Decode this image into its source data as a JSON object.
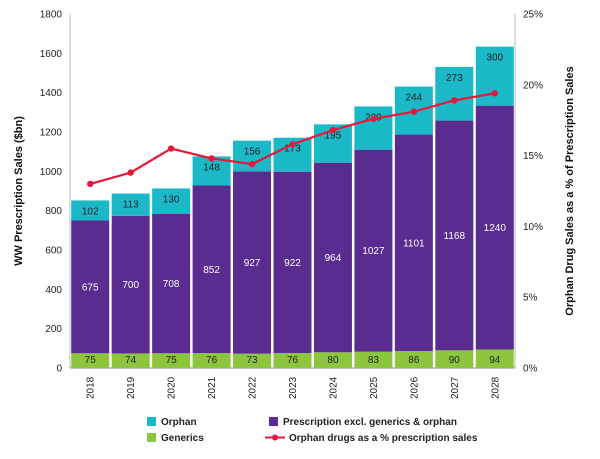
{
  "chart_data": {
    "type": "bar",
    "stacked": true,
    "categories": [
      "2018",
      "2019",
      "2020",
      "2021",
      "2022",
      "2023",
      "2024",
      "2025",
      "2026",
      "2027",
      "2028"
    ],
    "series": [
      {
        "name": "Generics",
        "color": "#8cc63f",
        "values": [
          75,
          74,
          75,
          76,
          73,
          76,
          80,
          83,
          86,
          90,
          94
        ]
      },
      {
        "name": "Prescription excl. generics & orphan",
        "color": "#5b2c8f",
        "values": [
          675,
          700,
          708,
          852,
          927,
          922,
          964,
          1027,
          1101,
          1168,
          1240
        ]
      },
      {
        "name": "Orphan",
        "color": "#1bb8c8",
        "values": [
          102,
          113,
          130,
          148,
          156,
          173,
          195,
          220,
          244,
          273,
          300
        ]
      }
    ],
    "line_series": {
      "name": "Orphan drugs as a % prescription sales",
      "color": "#e8173a",
      "axis": "right",
      "values": [
        13.0,
        13.8,
        15.5,
        14.8,
        14.4,
        15.8,
        16.8,
        17.6,
        18.1,
        18.9,
        19.4
      ]
    },
    "ylabel": "WW Prescription Sales ($bn)",
    "ylim": [
      0,
      1800
    ],
    "yticks": [
      "0",
      "200",
      "400",
      "600",
      "800",
      "1000",
      "1200",
      "1400",
      "1600",
      "1800"
    ],
    "y2label": "Orphan Drug Sales as a % of Prescription Sales",
    "y2lim": [
      0,
      25
    ],
    "y2ticks": [
      "0%",
      "5%",
      "10%",
      "15%",
      "20%",
      "25%"
    ],
    "legend": [
      {
        "label": "Orphan",
        "kind": "box",
        "color": "#1bb8c8"
      },
      {
        "label": "Prescription excl. generics & orphan",
        "kind": "box",
        "color": "#5b2c8f"
      },
      {
        "label": "Generics",
        "kind": "box",
        "color": "#8cc63f"
      },
      {
        "label": "Orphan drugs as a % prescription sales",
        "kind": "line",
        "color": "#e8173a"
      }
    ],
    "legend_position": "bottom"
  }
}
